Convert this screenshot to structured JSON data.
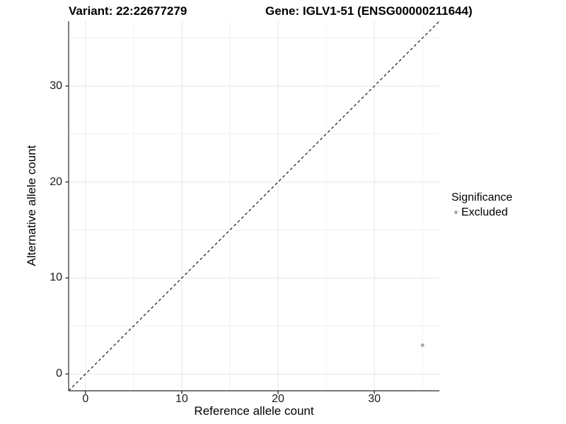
{
  "chart_data": {
    "type": "scatter",
    "title_left": "Variant: 22:22677279",
    "title_right": "Gene: IGLV1-51 (ENSG00000211644)",
    "xlabel": "Reference allele count",
    "ylabel": "Alternative allele count",
    "xlim": [
      -1.75,
      36.75
    ],
    "ylim": [
      -1.75,
      36.75
    ],
    "x_major_ticks": [
      0,
      10,
      20,
      30
    ],
    "y_major_ticks": [
      0,
      10,
      20,
      30
    ],
    "x_minor_ticks": [
      5,
      15,
      25,
      35
    ],
    "y_minor_ticks": [
      5,
      15,
      25,
      35
    ],
    "grid": "on",
    "identity_line": {
      "type": "y=x",
      "style": "dashed",
      "color": "#000000"
    },
    "series": [
      {
        "name": "Excluded",
        "color": "#a9a9a9",
        "points": [
          {
            "x": 35,
            "y": 3
          }
        ]
      }
    ],
    "legend": {
      "title": "Significance",
      "position": "right",
      "items": [
        {
          "label": "Excluded",
          "color": "#a9a9a9"
        }
      ]
    }
  },
  "colors": {
    "background": "#ffffff",
    "axis_line": "#4a4a4a",
    "tick_mark": "#333333",
    "grid_major": "#e6e6e6",
    "grid_minor": "#f2f2f2",
    "point": "#a9a9a9"
  }
}
